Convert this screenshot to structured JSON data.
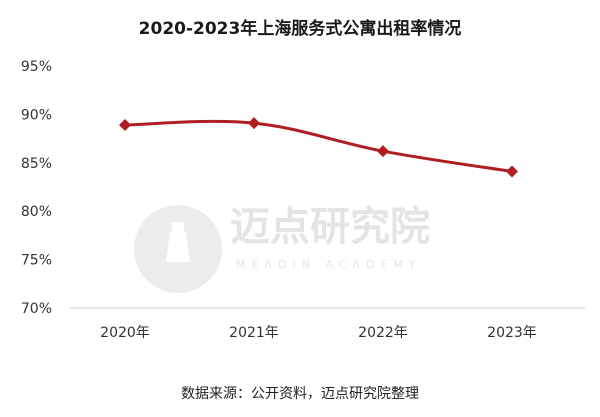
{
  "chart_data": {
    "type": "line",
    "title": "2020-2023年上海服务式公寓出租率情况",
    "categories": [
      "2020年",
      "2021年",
      "2022年",
      "2023年"
    ],
    "series": [
      {
        "values": [
          88.9,
          89.1,
          86.2,
          84.1
        ]
      }
    ],
    "ylim": [
      70,
      95
    ],
    "yticks": [
      "70%",
      "75%",
      "80%",
      "85%",
      "90%",
      "95%"
    ],
    "ytick_values": [
      70,
      75,
      80,
      85,
      90,
      95
    ],
    "grid": false,
    "legend": "none",
    "line_color": "#b01e23",
    "marker": "diamond"
  },
  "source": "数据来源：公开资料，迈点研究院整理",
  "watermark": {
    "text": "迈点研究院",
    "subtext": "MEADIN ACADEMY"
  }
}
